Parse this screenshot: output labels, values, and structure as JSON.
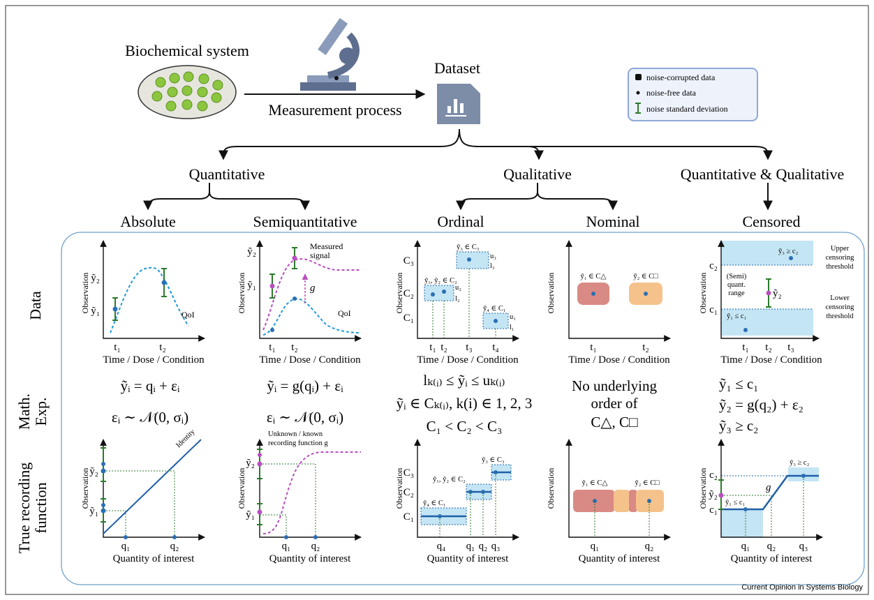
{
  "header": {
    "system": "Biochemical system",
    "process": "Measurement process",
    "dataset": "Dataset"
  },
  "legend": [
    "noise-corrupted data",
    "noise-free data",
    "noise standard deviation"
  ],
  "branches": {
    "quantitative": "Quantitative",
    "qualitative": "Qualitative",
    "mixed": "Quantitative & Qualitative"
  },
  "types": [
    "Absolute",
    "Semiquantitative",
    "Ordinal",
    "Nominal",
    "Censored"
  ],
  "row_labels": [
    "Data",
    [
      "Math.",
      "Exp."
    ],
    [
      "True recording",
      "function"
    ]
  ],
  "axes": {
    "observation": "Observation",
    "time": "Time / Dose / Condition",
    "quantity": "Quantity of interest"
  },
  "data_panels": [
    {
      "y_ticks": [
        "ỹ₁",
        "ỹ₂"
      ],
      "x_ticks": [
        "t₁",
        "t₂"
      ],
      "curve": "QoI"
    },
    {
      "y_ticks": [
        "ỹ₁",
        "ỹ₂"
      ],
      "x_ticks": [
        "t₁",
        "t₂"
      ],
      "curve": "QoI",
      "signal": [
        "Measured",
        "signal"
      ],
      "map": "g"
    },
    {
      "y_ticks": [
        "C₁",
        "C₂",
        "C₃"
      ],
      "x_ticks": [
        "t₁",
        "t₂",
        "t₃",
        "t₄"
      ],
      "boxes": [
        "ỹ₁, ỹ₂ ∈ C₂",
        "ỹ₃ ∈ C₃",
        "ỹ₄ ∈ C₁"
      ],
      "bounds": [
        "u₂",
        "l₂",
        "u₃",
        "l₃",
        "u₁",
        "l₁"
      ]
    },
    {
      "x_ticks": [
        "t₁",
        "t₂"
      ],
      "boxes": [
        "ỹ₁ ∈ C△",
        "ỹ₂ ∈ C□"
      ]
    },
    {
      "y_ticks": [
        "c₁",
        "c₂"
      ],
      "x_ticks": [
        "t₁",
        "t₂",
        "t₃"
      ],
      "boxes": [
        "ỹ₃ ≥ c₂",
        "ỹ₁ ≤ c₁"
      ],
      "point": "ỹ₂",
      "range": [
        "(Semi)",
        "quant.",
        "range"
      ],
      "upper": [
        "Upper",
        "censoring",
        "threshold"
      ],
      "lower": [
        "Lower",
        "censoring",
        "threshold"
      ]
    }
  ],
  "equations": [
    [
      "ỹᵢ = qᵢ + εᵢ",
      "εᵢ ∼ 𝒩(0, σᵢ)"
    ],
    [
      "ỹᵢ = g(qᵢ) + εᵢ",
      "εᵢ ∼ 𝒩(0, σᵢ)"
    ],
    [
      "lₖ₍ᵢ₎ ≤ ỹᵢ ≤ uₖ₍ᵢ₎",
      "ỹᵢ ∈ Cₖ₍ᵢ₎, k(i) ∈ 1, 2, 3",
      "C₁ < C₂ < C₃"
    ],
    [
      "No underlying",
      "order of",
      "C△, C□"
    ],
    [
      "ỹ₁ ≤ c₁",
      "ỹ₂ = g(q₂) + ε₂",
      "ỹ₃ ≥ c₂"
    ]
  ],
  "recording_panels": [
    {
      "y_ticks": [
        "ỹ₁",
        "ỹ₂"
      ],
      "x_ticks": [
        "q₁",
        "q₂"
      ],
      "line": "Identity"
    },
    {
      "y_ticks": [
        "ỹ₁",
        "ỹ₂"
      ],
      "x_ticks": [
        "q₁",
        "q₂"
      ],
      "note": [
        "Unknown / known",
        "recording function g"
      ]
    },
    {
      "y_ticks": [
        "C₁",
        "C₂",
        "C₃"
      ],
      "x_ticks": [
        "q₄",
        "q₁",
        "q₂",
        "q₃"
      ],
      "boxes": [
        "ỹ₄ ∈ C₁",
        "ỹ₁, ỹ₂ ∈ C₂",
        "ỹ₃ ∈ C₃"
      ]
    },
    {
      "x_ticks": [
        "q₁",
        "q₂"
      ],
      "boxes": [
        "ỹ₁ ∈ C△",
        "ỹ₂ ∈ C□"
      ]
    },
    {
      "y_ticks": [
        "c₁",
        "ỹ₂",
        "c₂"
      ],
      "x_ticks": [
        "q₁",
        "q₂",
        "q₃"
      ],
      "boxes": [
        "ỹ₁ ≤ c₁",
        "ỹ₃ ≥ c₂"
      ],
      "map": "g"
    }
  ],
  "footer": "Current Opinion in Systems Biology"
}
